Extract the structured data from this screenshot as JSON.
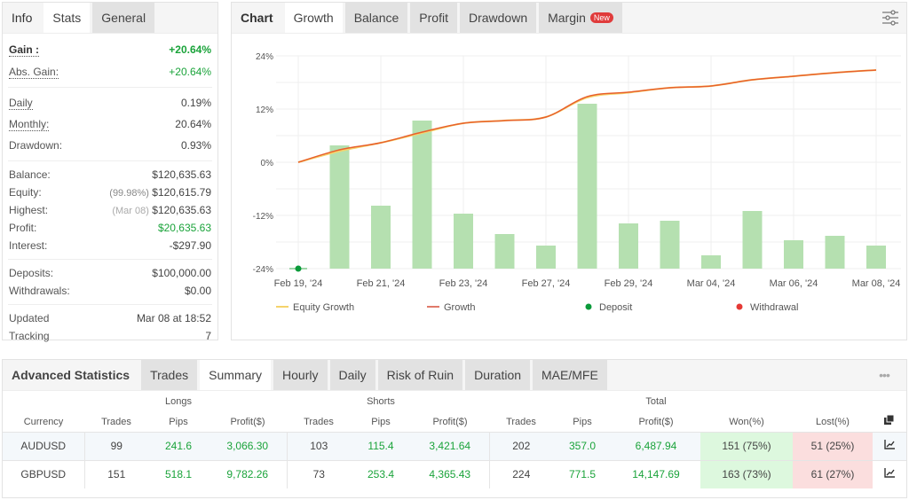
{
  "info_panel": {
    "tabs": [
      {
        "label": "Info"
      },
      {
        "label": "Stats"
      },
      {
        "label": "General"
      }
    ],
    "active_tab": "Stats",
    "gain": {
      "label": "Gain :",
      "value": "+20.64%"
    },
    "abs_gain": {
      "label": "Abs. Gain:",
      "value": "+20.64%"
    },
    "daily": {
      "label": "Daily",
      "value": "0.19%"
    },
    "monthly": {
      "label": "Monthly:",
      "value": "20.64%"
    },
    "drawdown": {
      "label": "Drawdown:",
      "value": "0.93%"
    },
    "balance": {
      "label": "Balance:",
      "value": "$120,635.63"
    },
    "equity": {
      "label": "Equity:",
      "note": "(99.98%)",
      "value": "$120,615.79"
    },
    "highest": {
      "label": "Highest:",
      "note": "(Mar 08)",
      "value": "$120,635.63"
    },
    "profit": {
      "label": "Profit:",
      "value": "$20,635.63"
    },
    "interest": {
      "label": "Interest:",
      "value": "-$297.90"
    },
    "deposits": {
      "label": "Deposits:",
      "value": "$100,000.00"
    },
    "withdrawals": {
      "label": "Withdrawals:",
      "value": "$0.00"
    },
    "updated": {
      "label": "Updated",
      "value": "Mar 08 at 18:52"
    },
    "tracking": {
      "label": "Tracking",
      "value": "7"
    }
  },
  "chart_panel": {
    "title": "Chart",
    "tabs": [
      {
        "label": "Growth"
      },
      {
        "label": "Balance"
      },
      {
        "label": "Profit"
      },
      {
        "label": "Drawdown"
      },
      {
        "label": "Margin",
        "badge": "New"
      }
    ],
    "active_tab": "Growth",
    "settings_icon": "sliders-icon"
  },
  "chart_data": {
    "type": "line",
    "y_ticks": [
      "24%",
      "12%",
      "0%",
      "-12%",
      "-24%"
    ],
    "ylim": [
      -24,
      24
    ],
    "grid": true,
    "x_categories": [
      "Feb 19, '24",
      "",
      "Feb 21, '24",
      "",
      "Feb 23, '24",
      "",
      "Feb 27, '24",
      "",
      "Feb 29, '24",
      "",
      "Mar 04, '24",
      "",
      "Mar 06, '24",
      "",
      "Mar 08, '24"
    ],
    "series": [
      {
        "name": "Growth",
        "type": "line",
        "color": "#e8602c",
        "values": [
          0,
          2.8,
          4.4,
          6.8,
          8.8,
          9.4,
          10.2,
          14.8,
          15.8,
          16.8,
          17.2,
          18.6,
          19.4,
          20.2,
          20.8
        ]
      },
      {
        "name": "Equity Growth",
        "type": "line",
        "color": "#f5d36b",
        "values": [
          0,
          2.5,
          4.4,
          6.6,
          8.8,
          9.4,
          10.2,
          14.6,
          15.7,
          16.8,
          17.2,
          18.6,
          19.4,
          20.2,
          20.8
        ]
      },
      {
        "type": "bar",
        "color": "#b5e0b0",
        "values": [
          null,
          3.8,
          -9.8,
          9.4,
          -11.6,
          -16.2,
          -18.8,
          13.2,
          -13.8,
          -13.2,
          -21,
          -11,
          -17.6,
          -16.6,
          -18.8
        ]
      }
    ],
    "deposit_markers": [
      {
        "x": "Feb 19, '24"
      }
    ],
    "legend": [
      {
        "label": "Equity Growth",
        "color": "#f5d36b"
      },
      {
        "label": "Growth",
        "color": "#e07a6a"
      },
      {
        "label": "Deposit",
        "color": "#0a9a3a"
      },
      {
        "label": "Withdrawal",
        "color": "#e53935"
      }
    ],
    "legend_position": "bottom"
  },
  "advanced": {
    "title": "Advanced Statistics",
    "tabs": [
      {
        "label": "Trades"
      },
      {
        "label": "Summary"
      },
      {
        "label": "Hourly"
      },
      {
        "label": "Daily"
      },
      {
        "label": "Risk of Ruin"
      },
      {
        "label": "Duration"
      },
      {
        "label": "MAE/MFE"
      }
    ],
    "active_tab": "Summary",
    "more_icon": "ellipsis-icon",
    "groups": {
      "longs": "Longs",
      "shorts": "Shorts",
      "total": "Total"
    },
    "columns": [
      "Currency",
      "Trades",
      "Pips",
      "Profit($)",
      "Trades",
      "Pips",
      "Profit($)",
      "Trades",
      "Pips",
      "Profit($)",
      "Won(%)",
      "Lost(%)"
    ],
    "rows": [
      [
        "AUDUSD",
        "99",
        "241.6",
        "3,066.30",
        "103",
        "115.4",
        "3,421.64",
        "202",
        "357.0",
        "6,487.94",
        "151 (75%)",
        "51 (25%)"
      ],
      [
        "GBPUSD",
        "151",
        "518.1",
        "9,782.26",
        "73",
        "253.4",
        "4,365.43",
        "224",
        "771.5",
        "14,147.69",
        "163 (73%)",
        "61 (27%)"
      ]
    ]
  }
}
